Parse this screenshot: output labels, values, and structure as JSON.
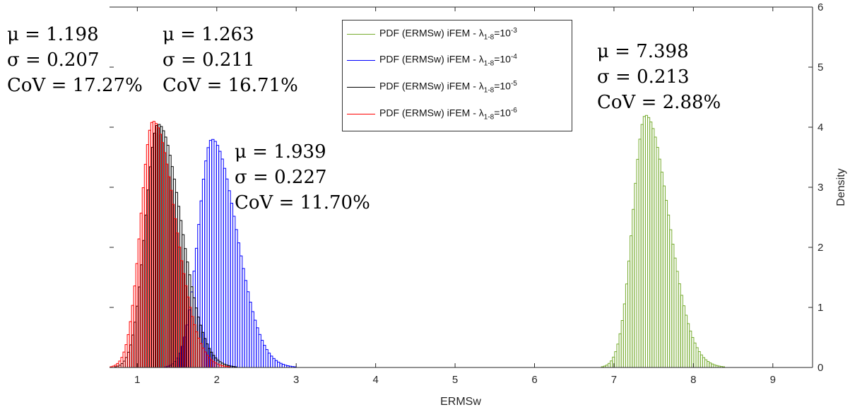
{
  "chart_data": {
    "type": "histogram",
    "xlabel": "ERMSw",
    "ylabel": "Density",
    "xlim": [
      0.65,
      9.5
    ],
    "ylim": [
      0,
      6
    ],
    "x_ticks": [
      "1",
      "2",
      "3",
      "4",
      "5",
      "6",
      "7",
      "8",
      "9"
    ],
    "y_ticks_right": [
      "0",
      "1",
      "2",
      "3",
      "4",
      "5",
      "6"
    ],
    "legend_position": "top-center",
    "series": [
      {
        "name_main": "PDF (ERMSw) iFEM - λ",
        "sub": "1-8",
        "sup": "-3",
        "color": "#77ac30",
        "mu": 7.398,
        "sigma": 0.213,
        "peak": 4.2
      },
      {
        "name_main": "PDF (ERMSw) iFEM - λ",
        "sub": "1-8",
        "sup": "-4",
        "color": "#0000ff",
        "mu": 1.939,
        "sigma": 0.227,
        "peak": 3.8
      },
      {
        "name_main": "PDF (ERMSw) iFEM - λ",
        "sub": "1-8",
        "sup": "-5",
        "color": "#000000",
        "mu": 1.263,
        "sigma": 0.211,
        "peak": 4.05
      },
      {
        "name_main": "PDF (ERMSw) iFEM - λ",
        "sub": "1-8",
        "sup": "-6",
        "color": "#ff0000",
        "mu": 1.198,
        "sigma": 0.207,
        "peak": 4.1
      }
    ],
    "annotations": [
      {
        "mu": "μ = 1.198",
        "sigma": "σ = 0.207",
        "cov": "CoV = 17.27%"
      },
      {
        "mu": "μ = 1.263",
        "sigma": "σ = 0.211",
        "cov": "CoV = 16.71%"
      },
      {
        "mu": "μ = 1.939",
        "sigma": "σ = 0.227",
        "cov": "CoV = 11.70%"
      },
      {
        "mu": "μ = 7.398",
        "sigma": "σ = 0.213",
        "cov": "CoV = 2.88%"
      }
    ]
  }
}
